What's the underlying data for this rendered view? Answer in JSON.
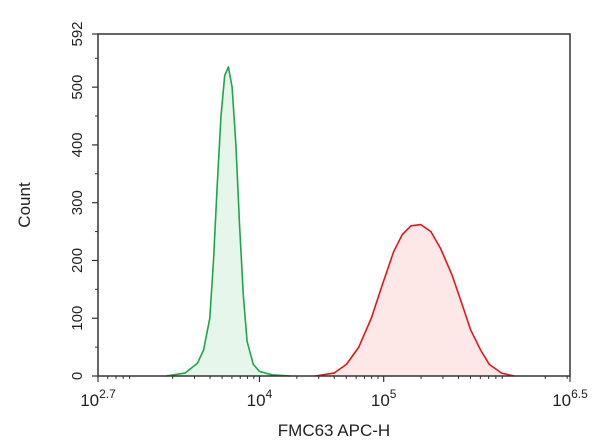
{
  "chart_data": {
    "type": "area",
    "xlabel": "FMC63 APC-H",
    "ylabel": "Count",
    "x_scale": "log10",
    "xlim": [
      2.7,
      6.5
    ],
    "ylim": [
      0,
      592
    ],
    "x_ticks": [
      {
        "value": 2.7,
        "base": "10",
        "exp": "2.7"
      },
      {
        "value": 4,
        "base": "10",
        "exp": "4"
      },
      {
        "value": 5,
        "base": "10",
        "exp": "5"
      },
      {
        "value": 6.5,
        "base": "10",
        "exp": "6.5"
      }
    ],
    "y_ticks": [
      {
        "value": 0,
        "label": "0"
      },
      {
        "value": 100,
        "label": "100"
      },
      {
        "value": 200,
        "label": "200"
      },
      {
        "value": 300,
        "label": "300"
      },
      {
        "value": 400,
        "label": "400"
      },
      {
        "value": 500,
        "label": "500"
      },
      {
        "value": 592,
        "label": "592"
      }
    ],
    "grid": false,
    "legend": "none",
    "series": [
      {
        "color": "#1aa84a",
        "fill": "#e6f6ea",
        "x": [
          3.25,
          3.4,
          3.5,
          3.55,
          3.6,
          3.63,
          3.66,
          3.69,
          3.72,
          3.75,
          3.78,
          3.81,
          3.84,
          3.87,
          3.9,
          3.95,
          4.0,
          4.1,
          4.25
        ],
        "y": [
          0,
          5,
          22,
          45,
          100,
          200,
          330,
          450,
          520,
          535,
          500,
          400,
          260,
          140,
          60,
          20,
          8,
          2,
          0
        ]
      },
      {
        "color": "#e8141c",
        "fill": "#fde7e7",
        "x": [
          4.45,
          4.6,
          4.7,
          4.8,
          4.9,
          5.0,
          5.08,
          5.15,
          5.22,
          5.3,
          5.38,
          5.46,
          5.55,
          5.63,
          5.7,
          5.78,
          5.85,
          5.95,
          6.05
        ],
        "y": [
          0,
          5,
          20,
          50,
          100,
          165,
          215,
          245,
          260,
          262,
          250,
          220,
          175,
          125,
          80,
          45,
          20,
          5,
          0
        ]
      }
    ]
  }
}
